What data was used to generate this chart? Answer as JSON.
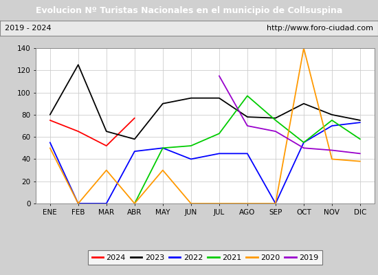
{
  "title": "Evolucion Nº Turistas Nacionales en el municipio de Collsuspina",
  "subtitle_left": "2019 - 2024",
  "subtitle_right": "http://www.foro-ciudad.com",
  "months": [
    "ENE",
    "FEB",
    "MAR",
    "ABR",
    "MAY",
    "JUN",
    "JUL",
    "AGO",
    "SEP",
    "OCT",
    "NOV",
    "DIC"
  ],
  "series_colors": {
    "2024": "#ff0000",
    "2023": "#000000",
    "2022": "#0000ff",
    "2021": "#00cc00",
    "2020": "#ff9900",
    "2019": "#9900cc"
  },
  "series_data": {
    "2024": [
      75,
      65,
      52,
      77,
      null,
      null,
      null,
      null,
      null,
      null,
      null,
      null
    ],
    "2023": [
      80,
      125,
      65,
      58,
      90,
      95,
      95,
      78,
      77,
      90,
      80,
      75
    ],
    "2022": [
      55,
      0,
      0,
      47,
      50,
      40,
      45,
      45,
      0,
      55,
      70,
      73
    ],
    "2021": [
      null,
      null,
      null,
      0,
      50,
      52,
      63,
      97,
      75,
      55,
      75,
      58
    ],
    "2020": [
      50,
      0,
      30,
      0,
      30,
      0,
      0,
      0,
      0,
      140,
      40,
      38
    ],
    "2019": [
      null,
      null,
      null,
      null,
      null,
      null,
      115,
      70,
      65,
      50,
      48,
      45
    ]
  },
  "legend_order": [
    "2024",
    "2023",
    "2022",
    "2021",
    "2020",
    "2019"
  ],
  "ylim": [
    0,
    140
  ],
  "yticks": [
    0,
    20,
    40,
    60,
    80,
    100,
    120,
    140
  ],
  "title_bg": "#4472c4",
  "title_color": "#ffffff",
  "subtitle_bg": "#e9e9e9",
  "plot_bg": "#ffffff",
  "grid_color": "#cccccc",
  "fig_bg": "#d0d0d0"
}
